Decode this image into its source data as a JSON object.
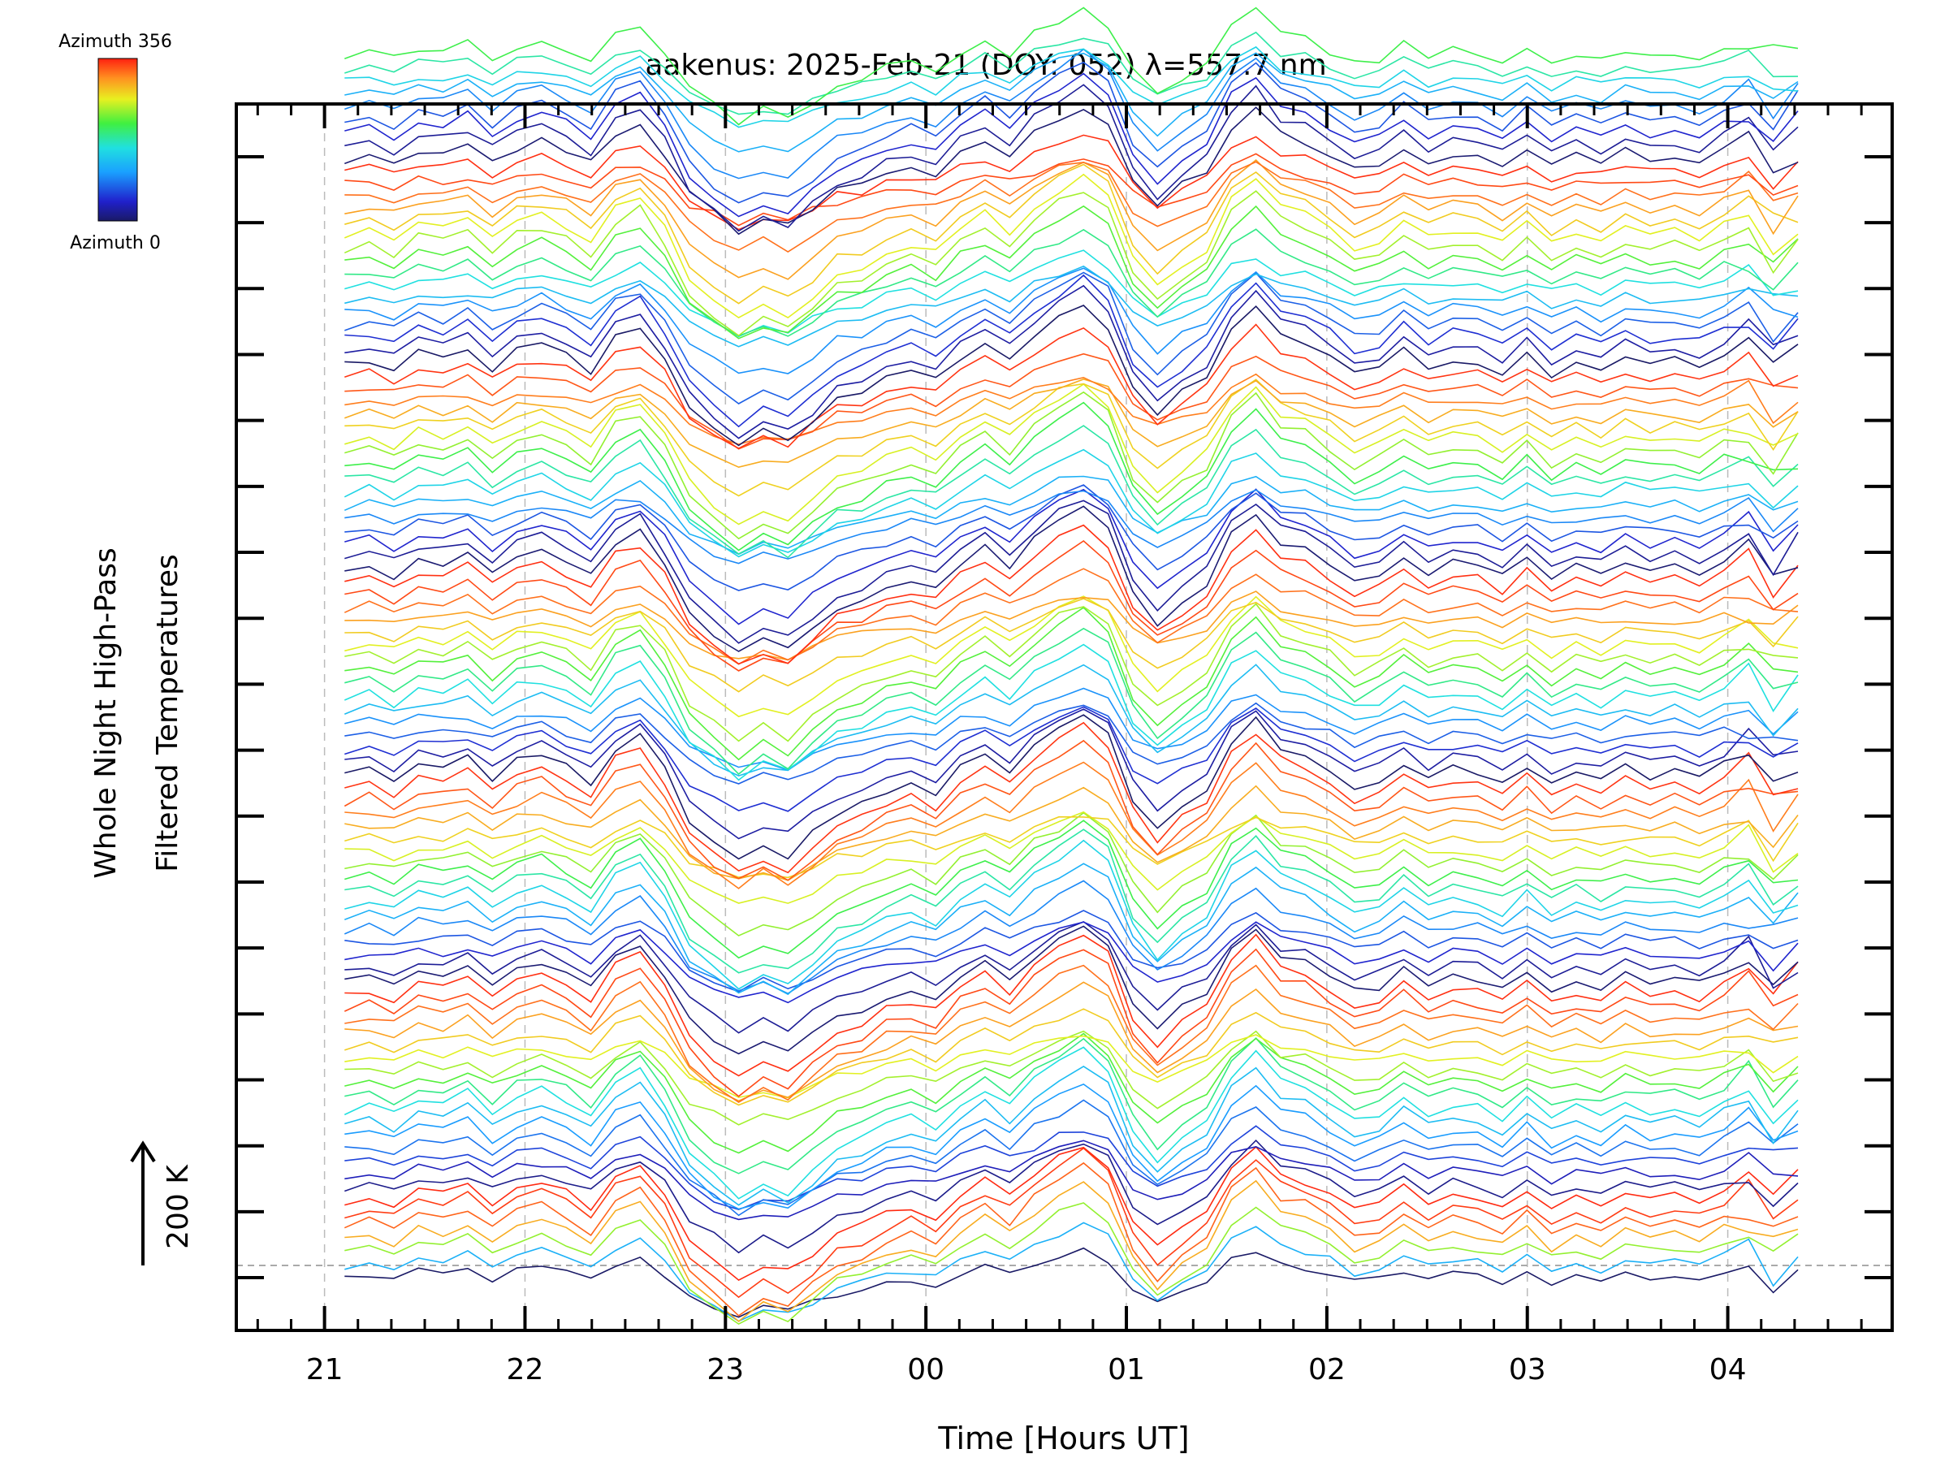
{
  "chart_data": {
    "type": "line",
    "title": "aakenus: 2025-Feb-21 (DOY: 052) λ=557.7 nm",
    "xlabel": "Time [Hours UT]",
    "ylabel_line1": "Whole Night High-Pass",
    "ylabel_line2": "Filtered Temperatures",
    "scale_label": "200 K",
    "colorbar": {
      "top_label": "Azimuth 356",
      "bottom_label": "Azimuth 0",
      "min": 0,
      "max": 356
    },
    "x_ticks": [
      {
        "hour": 21,
        "label": "21"
      },
      {
        "hour": 22,
        "label": "22"
      },
      {
        "hour": 23,
        "label": "23"
      },
      {
        "hour": 24,
        "label": "00"
      },
      {
        "hour": 25,
        "label": "01"
      },
      {
        "hour": 26,
        "label": "02"
      },
      {
        "hour": 27,
        "label": "03"
      },
      {
        "hour": 28,
        "label": "04"
      }
    ],
    "xlim": [
      20.56,
      28.82
    ],
    "data_start_hour": 21.1,
    "data_end_hour": 28.35,
    "n_samples": 60,
    "n_series": 96,
    "series_offset_K": 39,
    "ylim_K": [
      -160,
      3560
    ],
    "series_azimuths": [
      0,
      120,
      240,
      300,
      330,
      345,
      352,
      15,
      35,
      60,
      85,
      105,
      130,
      160,
      190,
      220,
      245,
      265,
      285,
      305,
      325,
      340,
      350,
      5,
      20,
      45,
      70,
      95,
      120,
      150,
      180,
      210,
      240,
      262,
      282,
      300,
      320,
      335,
      348,
      0,
      25,
      50,
      75,
      100,
      130,
      160,
      190,
      220,
      245,
      265,
      285,
      305,
      325,
      340,
      350,
      5,
      20,
      45,
      70,
      95,
      120,
      150,
      180,
      210,
      240,
      262,
      282,
      300,
      320,
      335,
      348,
      0,
      25,
      50,
      75,
      100,
      130,
      160,
      190,
      220,
      245,
      265,
      285,
      305,
      325,
      340,
      350,
      5,
      20,
      45,
      70,
      95,
      120,
      150,
      180,
      210
    ],
    "wave_template_K": [
      0,
      4,
      -3,
      8,
      5,
      12,
      -2,
      10,
      15,
      7,
      -4,
      20,
      28,
      5,
      -30,
      -45,
      -58,
      -48,
      -55,
      -40,
      -25,
      -20,
      -10,
      -5,
      -12,
      5,
      15,
      3,
      20,
      32,
      42,
      28,
      -15,
      -35,
      -20,
      -8,
      25,
      40,
      20,
      15,
      5,
      -8,
      -3,
      10,
      -2,
      5,
      3,
      -5,
      8,
      -6,
      2,
      -4,
      6,
      0,
      3,
      -2,
      8,
      15,
      -5,
      10
    ]
  }
}
